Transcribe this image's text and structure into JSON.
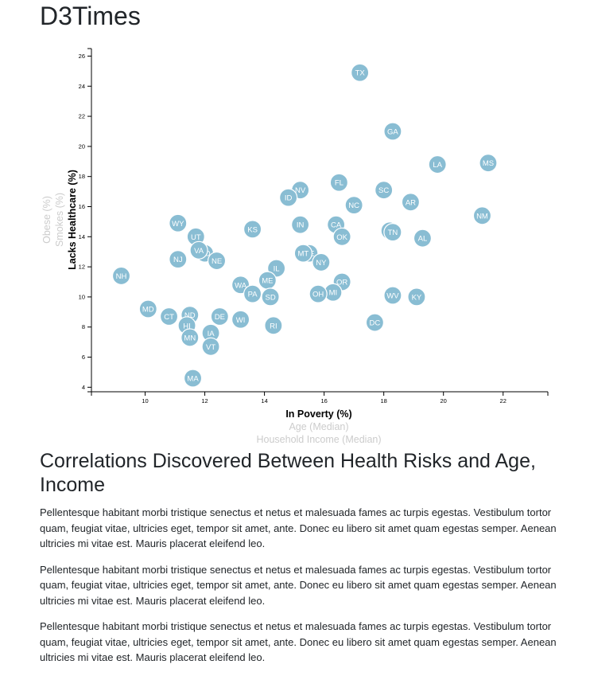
{
  "page": {
    "title": "D3Times"
  },
  "article": {
    "heading": "Correlations Discovered Between Health Risks and Age, Income",
    "paragraphs": [
      "Pellentesque habitant morbi tristique senectus et netus et malesuada fames ac turpis egestas. Vestibulum tortor quam, feugiat vitae, ultricies eget, tempor sit amet, ante. Donec eu libero sit amet quam egestas semper. Aenean ultricies mi vitae est. Mauris placerat eleifend leo.",
      "Pellentesque habitant morbi tristique senectus et netus et malesuada fames ac turpis egestas. Vestibulum tortor quam, feugiat vitae, ultricies eget, tempor sit amet, ante. Donec eu libero sit amet quam egestas semper. Aenean ultricies mi vitae est. Mauris placerat eleifend leo.",
      "Pellentesque habitant morbi tristique senectus et netus et malesuada fames ac turpis egestas. Vestibulum tortor quam, feugiat vitae, ultricies eget, tempor sit amet, ante. Donec eu libero sit amet quam egestas semper. Aenean ultricies mi vitae est. Mauris placerat eleifend leo."
    ]
  },
  "chart_data": {
    "type": "scatter",
    "marker_color": "#89bdd3",
    "label_color": "#ffffff",
    "xlim": [
      8.2,
      23.5
    ],
    "ylim": [
      3.7,
      26.5
    ],
    "xticks": [
      10,
      12,
      14,
      16,
      18,
      20,
      22
    ],
    "yticks": [
      4,
      6,
      8,
      10,
      12,
      14,
      16,
      18,
      20,
      22,
      24,
      26
    ],
    "x_axis_labels": [
      {
        "text": "In Poverty (%)",
        "active": true
      },
      {
        "text": "Age (Median)",
        "active": false
      },
      {
        "text": "Household Income (Median)",
        "active": false
      }
    ],
    "y_axis_labels": [
      {
        "text": "Lacks Healthcare (%)",
        "active": true
      },
      {
        "text": "Smokes (%)",
        "active": false
      },
      {
        "text": "Obese (%)",
        "active": false
      }
    ],
    "points": [
      {
        "label": "TX",
        "x": 17.2,
        "y": 24.9
      },
      {
        "label": "GA",
        "x": 18.3,
        "y": 21.0
      },
      {
        "label": "LA",
        "x": 19.8,
        "y": 18.8
      },
      {
        "label": "MS",
        "x": 21.5,
        "y": 18.9
      },
      {
        "label": "NV",
        "x": 15.2,
        "y": 17.1
      },
      {
        "label": "ID",
        "x": 14.8,
        "y": 16.6
      },
      {
        "label": "FL",
        "x": 16.5,
        "y": 17.6
      },
      {
        "label": "SC",
        "x": 18.0,
        "y": 17.1
      },
      {
        "label": "NC",
        "x": 17.0,
        "y": 16.1
      },
      {
        "label": "AR",
        "x": 18.9,
        "y": 16.3
      },
      {
        "label": "NM",
        "x": 21.3,
        "y": 15.4
      },
      {
        "label": "WY",
        "x": 11.1,
        "y": 14.9
      },
      {
        "label": "IN",
        "x": 15.2,
        "y": 14.8
      },
      {
        "label": "CA",
        "x": 16.4,
        "y": 14.8
      },
      {
        "label": "KS",
        "x": 13.6,
        "y": 14.5
      },
      {
        "label": "AZ",
        "x": 18.2,
        "y": 14.4
      },
      {
        "label": "TN",
        "x": 18.3,
        "y": 14.3
      },
      {
        "label": "OK",
        "x": 16.6,
        "y": 14.0
      },
      {
        "label": "AL",
        "x": 19.3,
        "y": 13.9
      },
      {
        "label": "UT",
        "x": 11.7,
        "y": 14.0
      },
      {
        "label": "CO",
        "x": 12.0,
        "y": 12.9
      },
      {
        "label": "VA",
        "x": 11.8,
        "y": 13.1
      },
      {
        "label": "NJ",
        "x": 11.1,
        "y": 12.5
      },
      {
        "label": "NE",
        "x": 12.4,
        "y": 12.4
      },
      {
        "label": "DE",
        "x": 15.5,
        "y": 12.9
      },
      {
        "label": "MT",
        "x": 15.3,
        "y": 12.9
      },
      {
        "label": "NY",
        "x": 15.9,
        "y": 12.3
      },
      {
        "label": "IL",
        "x": 14.4,
        "y": 11.9
      },
      {
        "label": "NH",
        "x": 9.2,
        "y": 11.4
      },
      {
        "label": "ME",
        "x": 14.1,
        "y": 11.1
      },
      {
        "label": "WA",
        "x": 13.2,
        "y": 10.8
      },
      {
        "label": "OR",
        "x": 16.6,
        "y": 11.0
      },
      {
        "label": "PA",
        "x": 13.6,
        "y": 10.2
      },
      {
        "label": "SD",
        "x": 14.2,
        "y": 10.0
      },
      {
        "label": "MI",
        "x": 16.3,
        "y": 10.3
      },
      {
        "label": "OH",
        "x": 15.8,
        "y": 10.2
      },
      {
        "label": "WV",
        "x": 18.3,
        "y": 10.1
      },
      {
        "label": "KY",
        "x": 19.1,
        "y": 10.0
      },
      {
        "label": "MD",
        "x": 10.1,
        "y": 9.2
      },
      {
        "label": "CT",
        "x": 10.8,
        "y": 8.7
      },
      {
        "label": "ND",
        "x": 11.5,
        "y": 8.8
      },
      {
        "label": "DE",
        "x": 12.5,
        "y": 8.7
      },
      {
        "label": "WI",
        "x": 13.2,
        "y": 8.5
      },
      {
        "label": "HI",
        "x": 11.4,
        "y": 8.1
      },
      {
        "label": "RI",
        "x": 14.3,
        "y": 8.1
      },
      {
        "label": "DC",
        "x": 17.7,
        "y": 8.3
      },
      {
        "label": "IA",
        "x": 12.2,
        "y": 7.6
      },
      {
        "label": "MN",
        "x": 11.5,
        "y": 7.3
      },
      {
        "label": "VT",
        "x": 12.2,
        "y": 6.7
      },
      {
        "label": "MA",
        "x": 11.6,
        "y": 4.6
      }
    ]
  }
}
